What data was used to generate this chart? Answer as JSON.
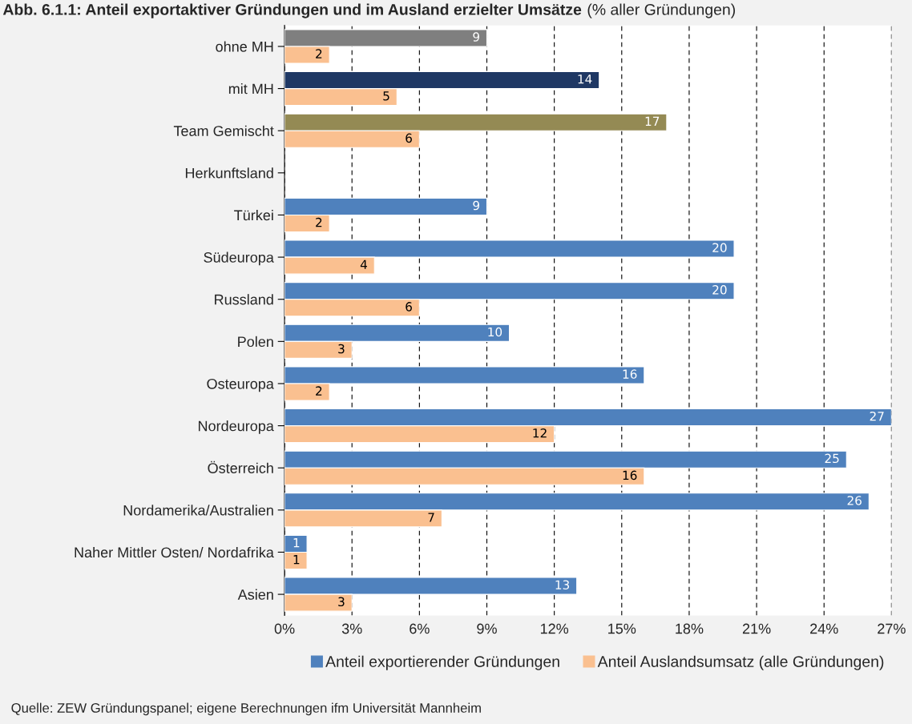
{
  "chart_data": {
    "type": "bar",
    "orientation": "horizontal",
    "title": "Abb. 6.1.1: Anteil exportaktiver Gründungen und im Ausland erzielter Umsätze",
    "subtitle": "(% aller Gründungen)",
    "categories": [
      "ohne MH",
      "mit MH",
      "Team Gemischt",
      "Herkunftsland",
      "Türkei",
      "Südeuropa",
      "Russland",
      "Polen",
      "Osteuropa",
      "Nordeuropa",
      "Österreich",
      "Nordamerika/Australien",
      "Naher Mittler Osten/ Nordafrika",
      "Asien"
    ],
    "series": [
      {
        "name": "Anteil exportierender Gründungen",
        "color": "#4f81bd",
        "colors": [
          "#7f7f7f",
          "#1f3864",
          "#948a54",
          null,
          "#4f81bd",
          "#4f81bd",
          "#4f81bd",
          "#4f81bd",
          "#4f81bd",
          "#4f81bd",
          "#4f81bd",
          "#4f81bd",
          "#4f81bd",
          "#4f81bd"
        ],
        "values": [
          9,
          14,
          17,
          null,
          9,
          20,
          20,
          10,
          16,
          27,
          25,
          26,
          1,
          13
        ]
      },
      {
        "name": "Anteil Auslandsumsatz (alle Gründungen)",
        "color": "#fac090",
        "values": [
          2,
          5,
          6,
          null,
          2,
          4,
          6,
          3,
          2,
          12,
          16,
          7,
          1,
          3
        ]
      }
    ],
    "xlim": [
      0,
      27
    ],
    "xticks": [
      {
        "value": 0,
        "label": "0%"
      },
      {
        "value": 3,
        "label": "3%"
      },
      {
        "value": 6,
        "label": "6%"
      },
      {
        "value": 9,
        "label": "9%"
      },
      {
        "value": 12,
        "label": "12%"
      },
      {
        "value": 15,
        "label": "15%"
      },
      {
        "value": 18,
        "label": "18%"
      },
      {
        "value": 21,
        "label": "21%"
      },
      {
        "value": 24,
        "label": "24%"
      },
      {
        "value": 27,
        "label": "27%"
      }
    ],
    "grid": "x",
    "legend": "bottom",
    "data_labels": true,
    "annotations": [
      "Quelle: ZEW Gründungspanel; eigene Berechnungen ifm Universität Mannheim"
    ]
  }
}
